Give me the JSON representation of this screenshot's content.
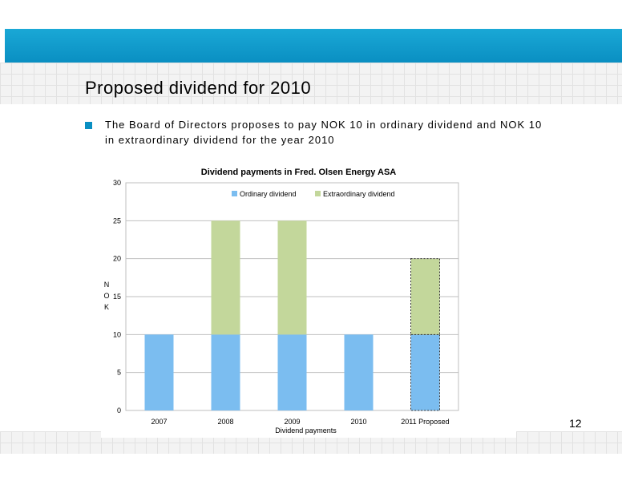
{
  "slide": {
    "title": "Proposed dividend for 2010",
    "bullet": "The Board of Directors proposes to pay NOK 10 in ordinary dividend and NOK 10 in extraordinary dividend for the year 2010",
    "page_number": "12"
  },
  "colors": {
    "accent": "#0a8fc2",
    "ordinary": "#7bbdf0",
    "extraordinary": "#c3d79b"
  },
  "chart_data": {
    "type": "bar",
    "stacked": true,
    "title": "Dividend payments in Fred. Olsen Energy ASA",
    "xlabel": "Dividend payments",
    "ylabel": "N O K",
    "ylabel_letters": [
      "N",
      "O",
      "K"
    ],
    "categories": [
      "2007",
      "2008",
      "2009",
      "2010",
      "2011 Proposed"
    ],
    "series": [
      {
        "name": "Ordinary dividend",
        "values": [
          10,
          10,
          10,
          10,
          10
        ],
        "color": "#7bbdf0"
      },
      {
        "name": "Extraordinary dividend",
        "values": [
          0,
          15,
          15,
          0,
          10
        ],
        "color": "#c3d79b"
      }
    ],
    "proposed_category": "2011 Proposed",
    "ylim": [
      0,
      30
    ],
    "yticks": [
      0,
      5,
      10,
      15,
      20,
      25,
      30
    ],
    "grid": true,
    "legend": "top"
  }
}
